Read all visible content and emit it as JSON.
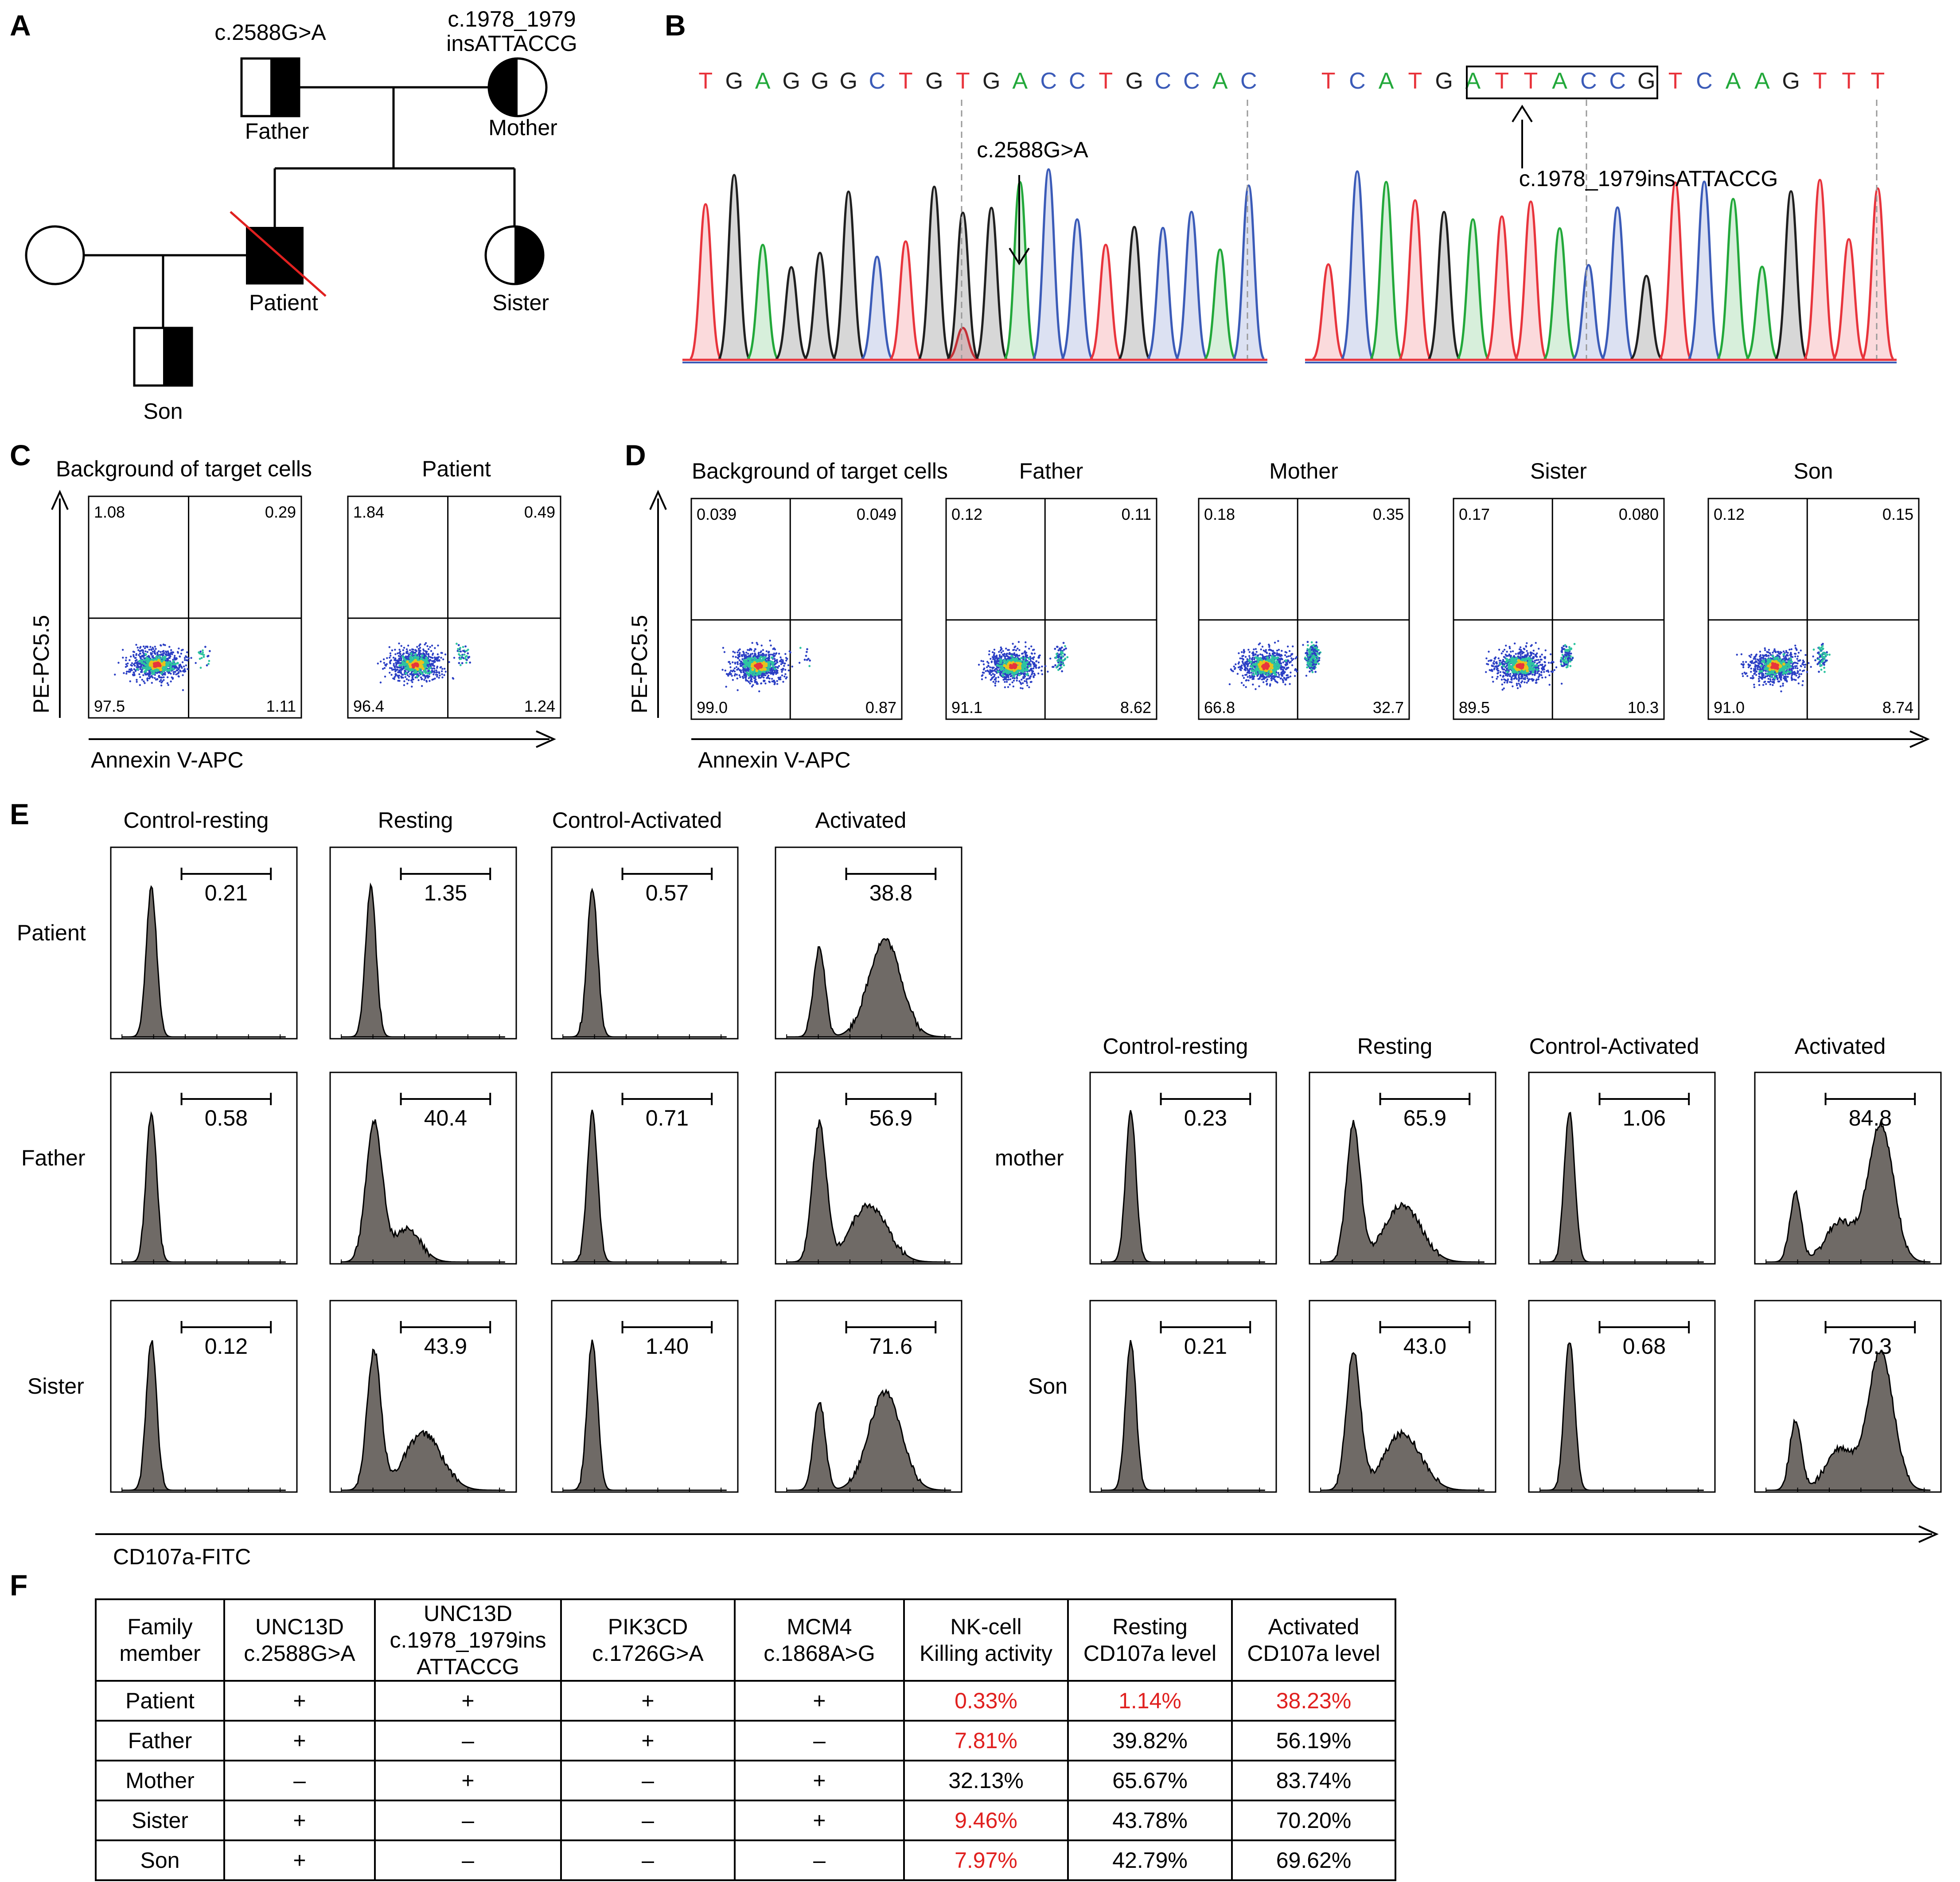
{
  "panel_letters": [
    "A",
    "B",
    "C",
    "D",
    "E",
    "F"
  ],
  "pedigree": {
    "members": [
      {
        "label": "Father",
        "variant": "c.2588G>A"
      },
      {
        "label": "Mother",
        "variant_line1": "c.1978_1979",
        "variant_line2": "insATTACCG"
      },
      {
        "label": "Patient"
      },
      {
        "label": "Sister"
      },
      {
        "label": "Son"
      }
    ]
  },
  "sequencing": {
    "left": {
      "bases": [
        "T",
        "G",
        "A",
        "G",
        "G",
        "G",
        "C",
        "T",
        "G",
        "T",
        "G",
        "A",
        "C",
        "C",
        "T",
        "G",
        "C",
        "C",
        "A",
        "C"
      ],
      "annotation": "c.2588G>A"
    },
    "right": {
      "bases": [
        "T",
        "C",
        "A",
        "T",
        "G",
        "A",
        "T",
        "T",
        "A",
        "C",
        "C",
        "G",
        "T",
        "C",
        "A",
        "A",
        "G",
        "T",
        "T",
        "T"
      ],
      "annotation": "c.1978_1979insATTACCG"
    },
    "base_colors": {
      "T": "#e8343c",
      "G": "#1f1f1f",
      "A": "#22a83a",
      "C": "#3b5bb8"
    }
  },
  "panel_c": {
    "x_axis": "Annexin V-APC",
    "y_axis": "PE-PC5.5",
    "plots": [
      {
        "title": "Background of target cells",
        "ul": "1.08",
        "ur": "0.29",
        "ll": "97.5",
        "lr": "1.11"
      },
      {
        "title": "Patient",
        "ul": "1.84",
        "ur": "0.49",
        "ll": "96.4",
        "lr": "1.24"
      }
    ]
  },
  "panel_d": {
    "x_axis": "Annexin V-APC",
    "y_axis": "PE-PC5.5",
    "plots": [
      {
        "title": "Background of target cells",
        "ul": "0.039",
        "ur": "0.049",
        "ll": "99.0",
        "lr": "0.87"
      },
      {
        "title": "Father",
        "ul": "0.12",
        "ur": "0.11",
        "ll": "91.1",
        "lr": "8.62"
      },
      {
        "title": "Mother",
        "ul": "0.18",
        "ur": "0.35",
        "ll": "66.8",
        "lr": "32.7"
      },
      {
        "title": "Sister",
        "ul": "0.17",
        "ur": "0.080",
        "ll": "89.5",
        "lr": "10.3"
      },
      {
        "title": "Son",
        "ul": "0.12",
        "ur": "0.15",
        "ll": "91.0",
        "lr": "8.74"
      }
    ]
  },
  "panel_e": {
    "x_axis": "CD107a-FITC",
    "columns": [
      "Control-resting",
      "Resting",
      "Control-Activated",
      "Activated"
    ],
    "rows": [
      {
        "label": "Patient",
        "values": [
          "0.21",
          "1.35",
          "0.57",
          "38.8"
        ]
      },
      {
        "label": "Father",
        "values": [
          "0.58",
          "40.4",
          "0.71",
          "56.9"
        ]
      },
      {
        "label": "Sister",
        "values": [
          "0.12",
          "43.9",
          "1.40",
          "71.6"
        ]
      },
      {
        "label": "mother",
        "values": [
          "0.23",
          "65.9",
          "1.06",
          "84.8"
        ]
      },
      {
        "label": "Son",
        "values": [
          "0.21",
          "43.0",
          "0.68",
          "70.3"
        ]
      }
    ]
  },
  "panel_f": {
    "headers": [
      [
        "Family",
        "member"
      ],
      [
        "UNC13D",
        "c.2588G>A"
      ],
      [
        "UNC13D",
        "c.1978_1979ins",
        "ATTACCG"
      ],
      [
        "PIK3CD",
        "c.1726G>A"
      ],
      [
        "MCM4",
        "c.1868A>G"
      ],
      [
        "NK-cell",
        "Killing activity"
      ],
      [
        "Resting",
        "CD107a level"
      ],
      [
        "Activated",
        "CD107a level"
      ]
    ],
    "rows": [
      {
        "cells": [
          "Patient",
          "+",
          "+",
          "+",
          "+",
          "0.33%",
          "1.14%",
          "38.23%"
        ],
        "red": [
          5,
          6,
          7
        ]
      },
      {
        "cells": [
          "Father",
          "+",
          "–",
          "+",
          "–",
          "7.81%",
          "39.82%",
          "56.19%"
        ],
        "red": [
          5
        ]
      },
      {
        "cells": [
          "Mother",
          "–",
          "+",
          "–",
          "+",
          "32.13%",
          "65.67%",
          "83.74%"
        ],
        "red": []
      },
      {
        "cells": [
          "Sister",
          "+",
          "–",
          "–",
          "+",
          "9.46%",
          "43.78%",
          "70.20%"
        ],
        "red": [
          5
        ]
      },
      {
        "cells": [
          "Son",
          "+",
          "–",
          "–",
          "–",
          "7.97%",
          "42.79%",
          "69.62%"
        ],
        "red": [
          5
        ]
      }
    ],
    "highlight_color": "#e0201f"
  }
}
